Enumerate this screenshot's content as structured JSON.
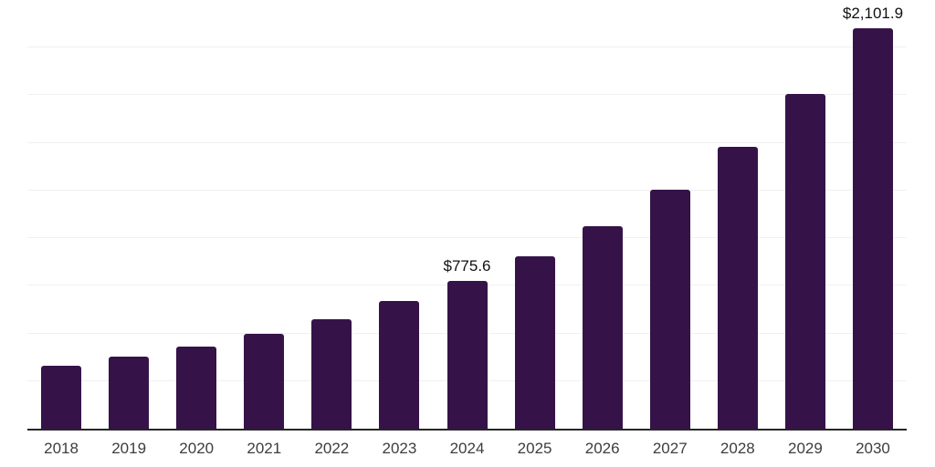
{
  "chart_data": {
    "type": "bar",
    "title": "",
    "xlabel": "",
    "ylabel": "",
    "categories": [
      "2018",
      "2019",
      "2020",
      "2021",
      "2022",
      "2023",
      "2024",
      "2025",
      "2026",
      "2027",
      "2028",
      "2029",
      "2030"
    ],
    "values": [
      330,
      378,
      431,
      498,
      574,
      670,
      775.6,
      905,
      1063,
      1254,
      1479,
      1757,
      2101.9
    ],
    "data_labels": {
      "2024": "$775.6",
      "2030": "$2,101.9"
    },
    "ylim": [
      0,
      2250
    ],
    "grid_step": 250,
    "grid": "horizontal",
    "legend": "none",
    "y_axis_tick_labels_visible": false,
    "colors": {
      "bar": "#351349",
      "gridline": "#f0f0f1",
      "axis_line": "#262626",
      "tick_label": "#3d3d3d",
      "value_label": "#111111",
      "background": "#ffffff"
    }
  }
}
